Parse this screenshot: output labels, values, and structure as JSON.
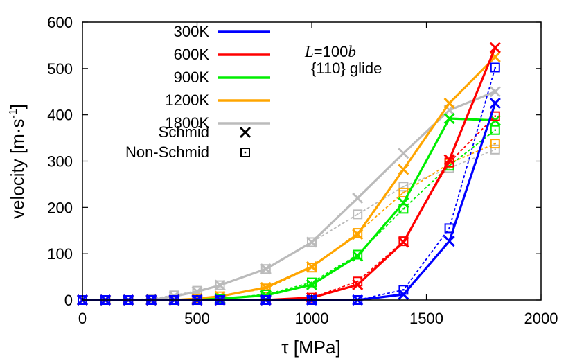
{
  "chart_data": {
    "type": "line",
    "title": "",
    "xlabel": "τ [MPa]",
    "ylabel_main": "velocity [m·s",
    "ylabel_sup": "-1",
    "ylabel_close": "]",
    "xlim": [
      0,
      2000
    ],
    "ylim": [
      0,
      600
    ],
    "xticks": [
      0,
      500,
      1000,
      1500,
      2000
    ],
    "yticks": [
      0,
      100,
      200,
      300,
      400,
      500,
      600
    ],
    "xtick_labels": [
      "0",
      "500",
      "1000",
      "1500",
      "2000"
    ],
    "ytick_labels": [
      "0",
      "100",
      "200",
      "300",
      "400",
      "500",
      "600"
    ],
    "grid": false,
    "legend_position": "top-left",
    "annotation": {
      "line1_italic_L": "L",
      "line1_mid": "=100",
      "line1_italic_b": "b",
      "line2": "{110} glide"
    },
    "legend": {
      "series_labels": [
        "300K",
        "600K",
        "900K",
        "1200K",
        "1800K"
      ],
      "schmid_label": "Schmid",
      "nonschmid_label": "Non-Schmid"
    },
    "x": [
      0,
      100,
      200,
      300,
      400,
      500,
      600,
      800,
      1000,
      1200,
      1400,
      1600,
      1800
    ],
    "series": [
      {
        "name": "300K",
        "color": "#0000ff",
        "schmid": [
          0,
          0,
          0,
          0,
          0,
          0,
          0,
          0,
          0,
          0,
          12,
          127,
          425
        ],
        "nonschmid": [
          0,
          0,
          0,
          0,
          0,
          0,
          0,
          0,
          0,
          0,
          22,
          155,
          502
        ]
      },
      {
        "name": "600K",
        "color": "#ff0000",
        "schmid": [
          0,
          0,
          0,
          0,
          0,
          0,
          0,
          0,
          5,
          33,
          125,
          303,
          545
        ],
        "nonschmid": [
          0,
          0,
          0,
          0,
          0,
          0,
          0,
          0,
          5,
          40,
          127,
          297,
          397
        ]
      },
      {
        "name": "900K",
        "color": "#00ee00",
        "schmid": [
          0,
          0,
          0,
          0,
          0,
          0,
          3,
          10,
          33,
          95,
          210,
          392,
          388
        ],
        "nonschmid": [
          0,
          0,
          0,
          0,
          0,
          0,
          3,
          12,
          38,
          98,
          197,
          290,
          367
        ]
      },
      {
        "name": "1200K",
        "color": "#ffa500",
        "schmid": [
          0,
          0,
          0,
          0,
          0,
          3,
          8,
          27,
          72,
          142,
          282,
          425,
          525
        ],
        "nonschmid": [
          0,
          0,
          0,
          0,
          0,
          3,
          8,
          25,
          70,
          145,
          232,
          295,
          338
        ]
      },
      {
        "name": "1800K",
        "color": "#bbbbbb",
        "schmid": [
          0,
          0,
          0,
          0,
          8,
          18,
          32,
          67,
          125,
          220,
          317,
          410,
          450
        ],
        "nonschmid": [
          0,
          0,
          0,
          3,
          10,
          20,
          32,
          67,
          125,
          185,
          245,
          285,
          325
        ]
      }
    ]
  }
}
